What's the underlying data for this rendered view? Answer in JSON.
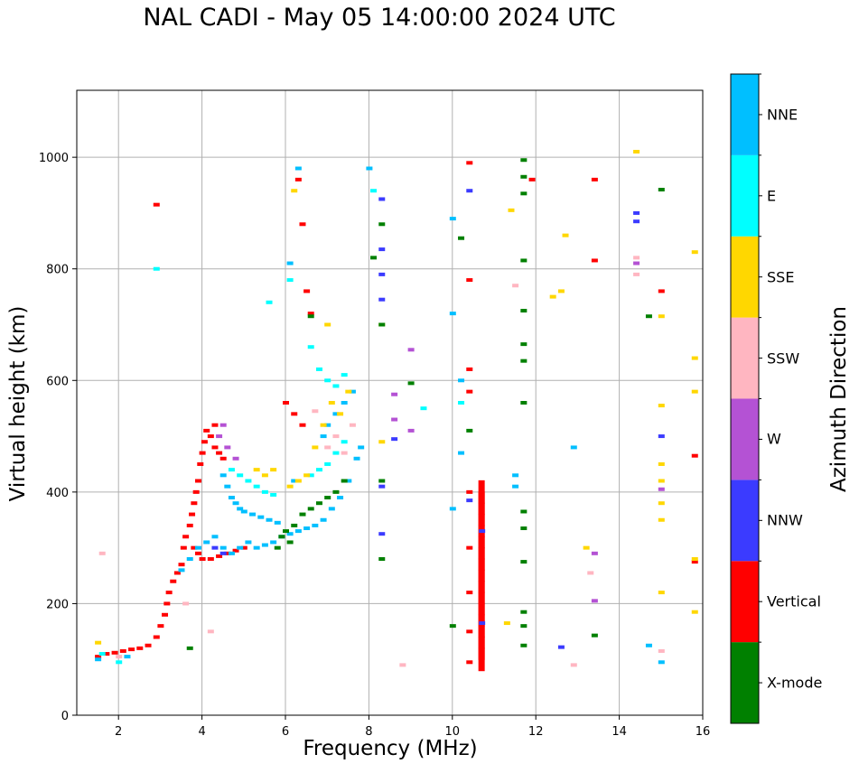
{
  "chart_data": {
    "type": "scatter",
    "title": "NAL CADI - May 05 14:00:00 2024 UTC",
    "xlabel": "Frequency (MHz)",
    "ylabel": "Virtual height (km)",
    "xlim": [
      1,
      16
    ],
    "ylim": [
      0,
      1120
    ],
    "xticks": [
      2,
      4,
      6,
      8,
      10,
      12,
      14,
      16
    ],
    "yticks": [
      0,
      200,
      400,
      600,
      800,
      1000
    ],
    "grid": true,
    "colorbar": {
      "label": "Azimuth Direction",
      "categories": [
        {
          "name": "X-mode",
          "color": "#008000"
        },
        {
          "name": "Vertical",
          "color": "#ff0000"
        },
        {
          "name": "NNW",
          "color": "#3b3bff"
        },
        {
          "name": "W",
          "color": "#b452d4"
        },
        {
          "name": "SSW",
          "color": "#ffb6c1"
        },
        {
          "name": "SSE",
          "color": "#ffd700"
        },
        {
          "name": "E",
          "color": "#00ffff"
        },
        {
          "name": "NNE",
          "color": "#00bfff"
        }
      ]
    },
    "series": [
      {
        "name": "Vertical",
        "points": [
          [
            1.5,
            105
          ],
          [
            1.7,
            110
          ],
          [
            1.9,
            112
          ],
          [
            2.1,
            115
          ],
          [
            2.3,
            118
          ],
          [
            2.5,
            120
          ],
          [
            2.7,
            125
          ],
          [
            2.9,
            140
          ],
          [
            3.0,
            160
          ],
          [
            3.1,
            180
          ],
          [
            3.15,
            200
          ],
          [
            3.2,
            220
          ],
          [
            3.3,
            240
          ],
          [
            3.4,
            255
          ],
          [
            3.5,
            270
          ],
          [
            3.55,
            300
          ],
          [
            3.6,
            320
          ],
          [
            3.7,
            340
          ],
          [
            3.75,
            360
          ],
          [
            3.8,
            380
          ],
          [
            3.85,
            400
          ],
          [
            3.9,
            420
          ],
          [
            3.95,
            450
          ],
          [
            4.0,
            470
          ],
          [
            4.05,
            490
          ],
          [
            4.1,
            510
          ],
          [
            4.2,
            500
          ],
          [
            4.3,
            480
          ],
          [
            4.4,
            470
          ],
          [
            4.5,
            460
          ],
          [
            4.3,
            520
          ],
          [
            4.0,
            280
          ],
          [
            4.2,
            280
          ],
          [
            4.4,
            285
          ],
          [
            4.6,
            290
          ],
          [
            4.8,
            295
          ],
          [
            5.0,
            300
          ],
          [
            3.8,
            300
          ],
          [
            3.9,
            290
          ],
          [
            6.0,
            560
          ],
          [
            6.2,
            540
          ],
          [
            6.4,
            520
          ],
          [
            6.5,
            760
          ],
          [
            6.6,
            720
          ],
          [
            6.4,
            880
          ],
          [
            6.3,
            960
          ],
          [
            2.9,
            915
          ],
          [
            10.4,
            400
          ],
          [
            10.4,
            300
          ],
          [
            10.4,
            220
          ],
          [
            10.4,
            150
          ],
          [
            10.4,
            95
          ],
          [
            10.4,
            620
          ],
          [
            10.4,
            580
          ],
          [
            10.4,
            780
          ],
          [
            10.4,
            990
          ],
          [
            11.9,
            960
          ],
          [
            13.4,
            960
          ],
          [
            13.4,
            815
          ],
          [
            15.0,
            760
          ],
          [
            15.8,
            465
          ],
          [
            15.8,
            275
          ]
        ]
      },
      {
        "name": "Vertical-strip",
        "points": [
          [
            10.7,
            400
          ],
          [
            10.7,
            380
          ],
          [
            10.7,
            360
          ],
          [
            10.7,
            340
          ],
          [
            10.7,
            320
          ],
          [
            10.7,
            300
          ],
          [
            10.7,
            280
          ],
          [
            10.7,
            260
          ],
          [
            10.7,
            240
          ],
          [
            10.7,
            220
          ],
          [
            10.7,
            200
          ],
          [
            10.7,
            180
          ],
          [
            10.7,
            160
          ],
          [
            10.7,
            140
          ],
          [
            10.7,
            120
          ],
          [
            10.7,
            100
          ]
        ]
      },
      {
        "name": "NNE",
        "points": [
          [
            1.5,
            100
          ],
          [
            2.2,
            105
          ],
          [
            3.5,
            260
          ],
          [
            3.7,
            280
          ],
          [
            3.9,
            300
          ],
          [
            4.1,
            310
          ],
          [
            4.3,
            320
          ],
          [
            4.5,
            300
          ],
          [
            4.7,
            290
          ],
          [
            4.9,
            300
          ],
          [
            5.1,
            310
          ],
          [
            5.3,
            300
          ],
          [
            5.5,
            305
          ],
          [
            5.7,
            310
          ],
          [
            5.9,
            320
          ],
          [
            6.1,
            325
          ],
          [
            6.3,
            330
          ],
          [
            6.5,
            335
          ],
          [
            6.7,
            340
          ],
          [
            6.9,
            350
          ],
          [
            7.1,
            370
          ],
          [
            7.3,
            390
          ],
          [
            7.5,
            420
          ],
          [
            7.7,
            460
          ],
          [
            7.8,
            480
          ],
          [
            4.5,
            430
          ],
          [
            4.6,
            410
          ],
          [
            4.7,
            390
          ],
          [
            4.8,
            380
          ],
          [
            4.9,
            370
          ],
          [
            5.0,
            365
          ],
          [
            5.2,
            360
          ],
          [
            5.4,
            355
          ],
          [
            5.6,
            350
          ],
          [
            5.8,
            345
          ],
          [
            6.9,
            500
          ],
          [
            7.0,
            520
          ],
          [
            7.2,
            540
          ],
          [
            7.4,
            560
          ],
          [
            7.6,
            580
          ],
          [
            6.2,
            420
          ],
          [
            6.1,
            810
          ],
          [
            6.3,
            980
          ],
          [
            8.0,
            980
          ],
          [
            10.0,
            890
          ],
          [
            10.0,
            720
          ],
          [
            10.2,
            600
          ],
          [
            10.2,
            470
          ],
          [
            10.0,
            370
          ],
          [
            11.5,
            430
          ],
          [
            11.5,
            410
          ],
          [
            15.0,
            95
          ],
          [
            14.7,
            125
          ],
          [
            12.9,
            480
          ]
        ]
      },
      {
        "name": "E",
        "points": [
          [
            1.6,
            110
          ],
          [
            2.0,
            95
          ],
          [
            4.7,
            440
          ],
          [
            4.9,
            430
          ],
          [
            5.1,
            420
          ],
          [
            5.3,
            410
          ],
          [
            5.5,
            400
          ],
          [
            5.7,
            395
          ],
          [
            6.6,
            430
          ],
          [
            6.8,
            440
          ],
          [
            7.0,
            450
          ],
          [
            7.2,
            470
          ],
          [
            7.4,
            490
          ],
          [
            6.6,
            660
          ],
          [
            6.8,
            620
          ],
          [
            7.0,
            600
          ],
          [
            7.2,
            590
          ],
          [
            7.4,
            610
          ],
          [
            5.6,
            740
          ],
          [
            6.1,
            780
          ],
          [
            2.9,
            800
          ],
          [
            8.1,
            940
          ],
          [
            9.3,
            550
          ],
          [
            10.2,
            560
          ]
        ]
      },
      {
        "name": "SSE",
        "points": [
          [
            1.5,
            130
          ],
          [
            5.3,
            440
          ],
          [
            5.5,
            430
          ],
          [
            5.7,
            440
          ],
          [
            6.1,
            410
          ],
          [
            6.3,
            420
          ],
          [
            6.5,
            430
          ],
          [
            6.7,
            480
          ],
          [
            6.9,
            520
          ],
          [
            7.1,
            560
          ],
          [
            7.3,
            540
          ],
          [
            7.5,
            580
          ],
          [
            7.0,
            700
          ],
          [
            6.2,
            940
          ],
          [
            8.3,
            700
          ],
          [
            8.3,
            490
          ],
          [
            11.3,
            165
          ],
          [
            11.4,
            905
          ],
          [
            12.4,
            750
          ],
          [
            12.6,
            760
          ],
          [
            12.7,
            860
          ],
          [
            13.2,
            300
          ],
          [
            14.4,
            1010
          ],
          [
            15.0,
            715
          ],
          [
            15.0,
            555
          ],
          [
            15.0,
            450
          ],
          [
            15.0,
            420
          ],
          [
            15.0,
            380
          ],
          [
            15.0,
            350
          ],
          [
            15.0,
            220
          ],
          [
            15.8,
            830
          ],
          [
            15.8,
            640
          ],
          [
            15.8,
            580
          ],
          [
            15.8,
            280
          ],
          [
            15.8,
            185
          ]
        ]
      },
      {
        "name": "SSW",
        "points": [
          [
            1.6,
            290
          ],
          [
            2.0,
            105
          ],
          [
            7.0,
            480
          ],
          [
            7.2,
            500
          ],
          [
            7.4,
            470
          ],
          [
            7.6,
            520
          ],
          [
            3.6,
            200
          ],
          [
            4.2,
            150
          ],
          [
            8.8,
            90
          ],
          [
            12.9,
            90
          ],
          [
            13.3,
            255
          ],
          [
            14.4,
            820
          ],
          [
            14.4,
            790
          ],
          [
            15.0,
            115
          ],
          [
            11.5,
            770
          ],
          [
            6.7,
            545
          ]
        ]
      },
      {
        "name": "W",
        "points": [
          [
            4.4,
            500
          ],
          [
            4.6,
            480
          ],
          [
            4.8,
            460
          ],
          [
            4.5,
            520
          ],
          [
            8.6,
            575
          ],
          [
            8.6,
            530
          ],
          [
            9.0,
            655
          ],
          [
            9.0,
            510
          ],
          [
            13.4,
            290
          ],
          [
            13.4,
            205
          ],
          [
            14.4,
            810
          ],
          [
            15.0,
            405
          ]
        ]
      },
      {
        "name": "NNW",
        "points": [
          [
            4.3,
            300
          ],
          [
            4.5,
            290
          ],
          [
            8.3,
            925
          ],
          [
            8.3,
            835
          ],
          [
            8.3,
            790
          ],
          [
            8.3,
            745
          ],
          [
            8.3,
            410
          ],
          [
            8.3,
            325
          ],
          [
            8.6,
            495
          ],
          [
            10.4,
            940
          ],
          [
            10.4,
            385
          ],
          [
            10.7,
            330
          ],
          [
            10.7,
            165
          ],
          [
            12.6,
            122
          ],
          [
            14.4,
            900
          ],
          [
            14.4,
            885
          ],
          [
            15.0,
            500
          ]
        ]
      },
      {
        "name": "X-mode",
        "points": [
          [
            3.7,
            120
          ],
          [
            5.8,
            300
          ],
          [
            5.9,
            320
          ],
          [
            6.0,
            330
          ],
          [
            6.1,
            310
          ],
          [
            6.2,
            340
          ],
          [
            6.4,
            360
          ],
          [
            6.6,
            370
          ],
          [
            6.8,
            380
          ],
          [
            7.0,
            390
          ],
          [
            7.2,
            400
          ],
          [
            7.4,
            420
          ],
          [
            6.6,
            715
          ],
          [
            8.3,
            880
          ],
          [
            8.3,
            700
          ],
          [
            8.3,
            420
          ],
          [
            8.3,
            280
          ],
          [
            8.1,
            820
          ],
          [
            9.0,
            595
          ],
          [
            10.0,
            160
          ],
          [
            10.2,
            855
          ],
          [
            10.4,
            510
          ],
          [
            11.7,
            995
          ],
          [
            11.7,
            965
          ],
          [
            11.7,
            935
          ],
          [
            11.7,
            815
          ],
          [
            11.7,
            725
          ],
          [
            11.7,
            665
          ],
          [
            11.7,
            635
          ],
          [
            11.7,
            560
          ],
          [
            11.7,
            365
          ],
          [
            11.7,
            335
          ],
          [
            11.7,
            275
          ],
          [
            11.7,
            185
          ],
          [
            11.7,
            160
          ],
          [
            11.7,
            125
          ],
          [
            13.4,
            143
          ],
          [
            14.7,
            715
          ],
          [
            15.0,
            942
          ]
        ]
      }
    ]
  }
}
